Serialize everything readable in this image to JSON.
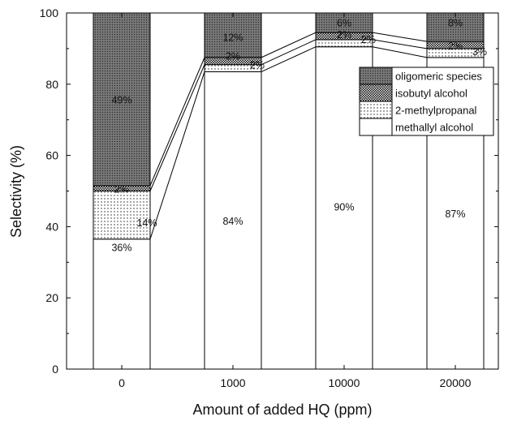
{
  "chart_data": {
    "type": "bar",
    "stacked": true,
    "categories": [
      "0",
      "1000",
      "10000",
      "20000"
    ],
    "series": [
      {
        "name": "methallyl alcohol",
        "values": [
          36.5,
          83.5,
          90.5,
          87.5
        ],
        "labels": [
          "36%",
          "84%",
          "90%",
          "87%"
        ]
      },
      {
        "name": "2-methylpropanal",
        "values": [
          13.5,
          2,
          2,
          2.5
        ],
        "labels": [
          "14%",
          "2%",
          "2%",
          "3%"
        ]
      },
      {
        "name": "isobutyl alcohol",
        "values": [
          1.5,
          2,
          2,
          2
        ],
        "labels": [
          "2%",
          "2%",
          "2%",
          "2%"
        ]
      },
      {
        "name": "oligomeric species",
        "values": [
          48.5,
          12.5,
          5.5,
          8
        ],
        "labels": [
          "49%",
          "12%",
          "6%",
          "8%"
        ]
      }
    ],
    "xlabel": "Amount of added HQ (ppm)",
    "ylabel": "Selectivity (%)",
    "ylim": [
      0,
      100
    ],
    "yticks": [
      "0",
      "20",
      "40",
      "60",
      "80",
      "100"
    ],
    "grid": false,
    "legend_position": "upper-right",
    "colors": {
      "methallyl alcohol": "#ffffff",
      "2-methylpropanal": "#ffffff",
      "isobutyl alcohol": "#d8d8d8",
      "oligomeric species": "#7a7a7a"
    },
    "connector_lines": true
  }
}
